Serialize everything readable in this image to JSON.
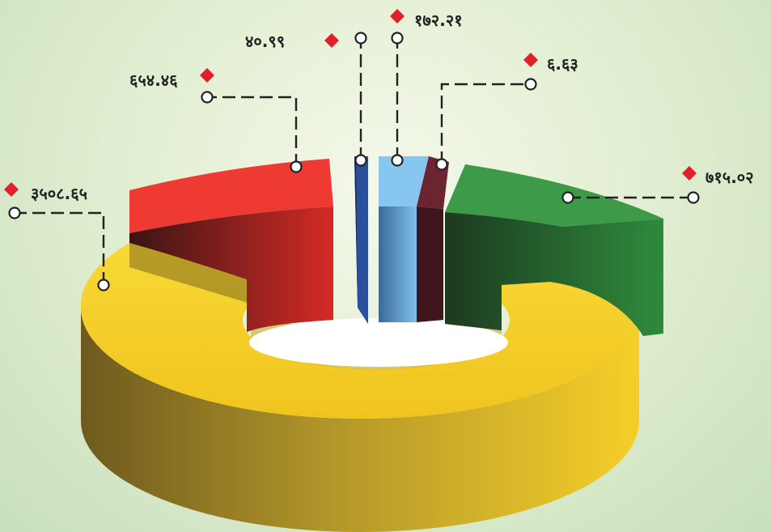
{
  "chart_data": {
    "type": "pie",
    "variant": "3d-donut-exploded",
    "grid": false,
    "legend": "none",
    "slices": [
      {
        "label": "३५०८.६५",
        "value": 3508.65,
        "color": "#f5cf28"
      },
      {
        "label": "६५४.४६",
        "value": 654.46,
        "color": "#e8302b"
      },
      {
        "label": "४०.९९",
        "value": 40.99,
        "color": "#2a4f9c"
      },
      {
        "label": "१७२.२१",
        "value": 172.21,
        "color": "#7fc1ec"
      },
      {
        "label": "६.६३",
        "value": 6.63,
        "color": "#5a1f28"
      },
      {
        "label": "७१५.०२",
        "value": 715.02,
        "color": "#2f8a3c"
      }
    ]
  }
}
